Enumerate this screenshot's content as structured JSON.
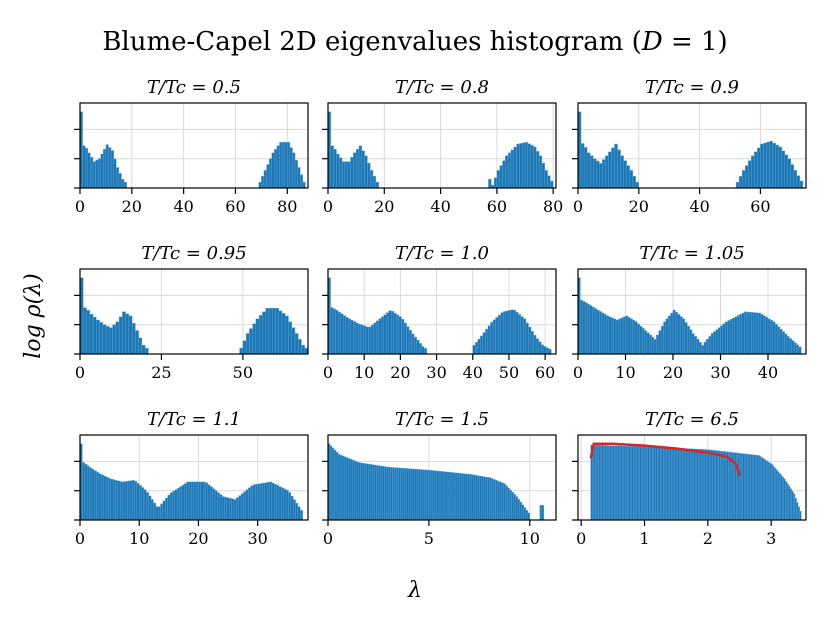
{
  "figure": {
    "title": "Blume-Capel 2D eigenvalues histogram (D = 1)",
    "xlabel": "λ",
    "ylabel": "log ρ(λ)"
  },
  "colors": {
    "bar": "#1f77b4",
    "bar_edge": "#5aa9dd",
    "fit": "#d62728",
    "grid": "#d9d9d9"
  },
  "chart_data": [
    {
      "type": "bar",
      "title": "T/Tc = 0.5",
      "xlim": [
        0,
        88
      ],
      "xticks": [
        0,
        20,
        40,
        60,
        80
      ],
      "ylim": [
        0,
        1.45
      ],
      "bins": [
        {
          "range": [
            0,
            17
          ],
          "step": 1,
          "shape": [
            [
              0,
              1.3
            ],
            [
              0.5,
              0.72
            ],
            [
              1.5,
              0.72
            ],
            [
              3,
              0.6
            ],
            [
              5,
              0.45
            ],
            [
              7,
              0.5
            ],
            [
              10,
              0.74
            ],
            [
              12,
              0.64
            ],
            [
              14,
              0.35
            ],
            [
              16,
              0.15
            ],
            [
              17,
              0.1
            ]
          ]
        },
        {
          "range": [
            69,
            86
          ],
          "step": 1,
          "shape": [
            [
              69,
              0.1
            ],
            [
              71,
              0.3
            ],
            [
              74,
              0.6
            ],
            [
              77,
              0.78
            ],
            [
              80,
              0.78
            ],
            [
              82,
              0.6
            ],
            [
              84,
              0.35
            ],
            [
              86,
              0.1
            ]
          ]
        }
      ]
    },
    {
      "type": "bar",
      "title": "T/Tc = 0.8",
      "xlim": [
        0,
        81
      ],
      "xticks": [
        0,
        20,
        40,
        60,
        80
      ],
      "ylim": [
        0,
        1.45
      ],
      "bins": [
        {
          "range": [
            0,
            17
          ],
          "step": 1,
          "shape": [
            [
              0,
              1.3
            ],
            [
              0.5,
              0.74
            ],
            [
              1.5,
              0.7
            ],
            [
              3,
              0.58
            ],
            [
              5,
              0.45
            ],
            [
              7,
              0.45
            ],
            [
              9,
              0.6
            ],
            [
              11,
              0.72
            ],
            [
              13,
              0.55
            ],
            [
              15,
              0.3
            ],
            [
              17,
              0.1
            ]
          ]
        },
        {
          "range": [
            57,
            79
          ],
          "step": 1,
          "shape": [
            [
              57,
              0.15
            ],
            [
              58,
              0.05
            ],
            [
              60,
              0.3
            ],
            [
              63,
              0.55
            ],
            [
              67,
              0.75
            ],
            [
              70,
              0.78
            ],
            [
              73,
              0.7
            ],
            [
              75,
              0.55
            ],
            [
              77,
              0.3
            ],
            [
              79,
              0.12
            ]
          ]
        }
      ]
    },
    {
      "type": "bar",
      "title": "T/Tc = 0.9",
      "xlim": [
        0,
        75
      ],
      "xticks": [
        0,
        20,
        40,
        60
      ],
      "ylim": [
        0,
        1.45
      ],
      "bins": [
        {
          "range": [
            0,
            19
          ],
          "step": 1,
          "shape": [
            [
              0,
              1.3
            ],
            [
              0.5,
              0.78
            ],
            [
              1.5,
              0.74
            ],
            [
              3,
              0.6
            ],
            [
              5,
              0.5
            ],
            [
              7,
              0.42
            ],
            [
              9,
              0.55
            ],
            [
              12,
              0.75
            ],
            [
              14,
              0.55
            ],
            [
              17,
              0.3
            ],
            [
              19,
              0.1
            ]
          ]
        },
        {
          "range": [
            52,
            73
          ],
          "step": 1,
          "shape": [
            [
              52,
              0.1
            ],
            [
              54,
              0.3
            ],
            [
              57,
              0.55
            ],
            [
              60,
              0.75
            ],
            [
              63,
              0.8
            ],
            [
              66,
              0.7
            ],
            [
              69,
              0.5
            ],
            [
              71,
              0.3
            ],
            [
              73,
              0.12
            ]
          ]
        }
      ]
    },
    {
      "type": "bar",
      "title": "T/Tc = 0.95",
      "xlim": [
        0,
        70
      ],
      "xticks": [
        0,
        25,
        50
      ],
      "ylim": [
        0,
        1.45
      ],
      "bins": [
        {
          "range": [
            0,
            20
          ],
          "step": 1,
          "shape": [
            [
              0,
              1.3
            ],
            [
              0.5,
              0.8
            ],
            [
              1.5,
              0.78
            ],
            [
              3,
              0.68
            ],
            [
              5,
              0.58
            ],
            [
              7,
              0.5
            ],
            [
              9,
              0.45
            ],
            [
              11,
              0.55
            ],
            [
              13,
              0.72
            ],
            [
              15,
              0.65
            ],
            [
              17,
              0.4
            ],
            [
              19,
              0.15
            ],
            [
              20,
              0.1
            ]
          ]
        },
        {
          "range": [
            49,
            69
          ],
          "step": 1,
          "shape": [
            [
              49,
              0.1
            ],
            [
              51,
              0.35
            ],
            [
              54,
              0.6
            ],
            [
              57,
              0.78
            ],
            [
              60,
              0.78
            ],
            [
              63,
              0.65
            ],
            [
              66,
              0.35
            ],
            [
              68,
              0.15
            ],
            [
              69,
              0.1
            ]
          ]
        }
      ]
    },
    {
      "type": "bar",
      "title": "T/Tc = 1.0",
      "xlim": [
        0,
        63
      ],
      "xticks": [
        0,
        10,
        20,
        30,
        40,
        50,
        60
      ],
      "ylim": [
        0,
        1.45
      ],
      "bins": [
        {
          "range": [
            0,
            27
          ],
          "step": 0.7,
          "shape": [
            [
              0,
              1.3
            ],
            [
              0.5,
              0.8
            ],
            [
              2,
              0.75
            ],
            [
              5,
              0.62
            ],
            [
              8,
              0.52
            ],
            [
              11,
              0.45
            ],
            [
              14,
              0.6
            ],
            [
              17,
              0.75
            ],
            [
              20,
              0.62
            ],
            [
              23,
              0.35
            ],
            [
              26,
              0.12
            ],
            [
              27,
              0.08
            ]
          ]
        },
        {
          "range": [
            40,
            61
          ],
          "step": 0.7,
          "shape": [
            [
              40,
              0.15
            ],
            [
              42,
              0.3
            ],
            [
              45,
              0.55
            ],
            [
              48,
              0.72
            ],
            [
              51,
              0.76
            ],
            [
              54,
              0.6
            ],
            [
              57,
              0.3
            ],
            [
              59,
              0.15
            ],
            [
              61,
              0.08
            ]
          ]
        }
      ]
    },
    {
      "type": "bar",
      "title": "T/Tc = 1.05",
      "xlim": [
        0,
        48
      ],
      "xticks": [
        0,
        10,
        20,
        30,
        40
      ],
      "ylim": [
        0,
        1.45
      ],
      "bins": [
        {
          "range": [
            0,
            46.5
          ],
          "step": 0.5,
          "shape": [
            [
              0,
              1.3
            ],
            [
              0.5,
              0.92
            ],
            [
              2,
              0.85
            ],
            [
              4,
              0.75
            ],
            [
              6,
              0.65
            ],
            [
              8,
              0.58
            ],
            [
              10,
              0.65
            ],
            [
              12,
              0.55
            ],
            [
              14,
              0.4
            ],
            [
              16,
              0.25
            ],
            [
              18,
              0.55
            ],
            [
              20,
              0.75
            ],
            [
              22,
              0.6
            ],
            [
              24,
              0.35
            ],
            [
              26,
              0.15
            ],
            [
              28,
              0.35
            ],
            [
              31,
              0.55
            ],
            [
              35,
              0.72
            ],
            [
              38,
              0.7
            ],
            [
              41,
              0.55
            ],
            [
              44,
              0.3
            ],
            [
              46.5,
              0.12
            ]
          ]
        }
      ]
    },
    {
      "type": "bar",
      "title": "T/Tc = 1.1",
      "xlim": [
        0,
        38.5
      ],
      "xticks": [
        0,
        10,
        20,
        30
      ],
      "ylim": [
        0,
        1.45
      ],
      "bins": [
        {
          "range": [
            0,
            37.5
          ],
          "step": 0.4,
          "shape": [
            [
              0,
              1.3
            ],
            [
              0.4,
              0.98
            ],
            [
              1.5,
              0.9
            ],
            [
              3,
              0.8
            ],
            [
              5,
              0.7
            ],
            [
              7,
              0.65
            ],
            [
              9,
              0.68
            ],
            [
              11,
              0.5
            ],
            [
              13,
              0.2
            ],
            [
              15,
              0.45
            ],
            [
              18,
              0.65
            ],
            [
              21,
              0.65
            ],
            [
              24,
              0.4
            ],
            [
              26,
              0.35
            ],
            [
              29,
              0.6
            ],
            [
              32,
              0.65
            ],
            [
              35,
              0.5
            ],
            [
              37.5,
              0.12
            ]
          ]
        }
      ]
    },
    {
      "type": "bar",
      "title": "T/Tc = 1.5",
      "xlim": [
        0,
        11.3
      ],
      "xticks": [
        0,
        5,
        10
      ],
      "ylim": [
        0,
        1.45
      ],
      "bins": [
        {
          "range": [
            0,
            9.9
          ],
          "step": 0.1,
          "shape": [
            [
              0,
              1.3
            ],
            [
              0.5,
              1.12
            ],
            [
              1.5,
              0.98
            ],
            [
              3,
              0.9
            ],
            [
              5,
              0.85
            ],
            [
              7,
              0.78
            ],
            [
              8,
              0.72
            ],
            [
              8.7,
              0.62
            ],
            [
              9.3,
              0.4
            ],
            [
              9.9,
              0.12
            ]
          ]
        },
        {
          "range": [
            10.5,
            10.6
          ],
          "step": 0.1,
          "shape": [
            [
              10.5,
              0.25
            ],
            [
              10.6,
              0.25
            ]
          ]
        }
      ]
    },
    {
      "type": "bar",
      "title": "T/Tc = 6.5",
      "xlim": [
        -0.05,
        3.55
      ],
      "xticks": [
        0,
        1,
        2,
        3
      ],
      "ylim": [
        0,
        1.45
      ],
      "bins": [
        {
          "range": [
            0.15,
            3.45
          ],
          "step": 0.025,
          "shape": [
            [
              0.15,
              1.28
            ],
            [
              1.0,
              1.25
            ],
            [
              2.0,
              1.2
            ],
            [
              2.8,
              1.1
            ],
            [
              3.0,
              0.95
            ],
            [
              3.2,
              0.7
            ],
            [
              3.35,
              0.45
            ],
            [
              3.45,
              0.15
            ]
          ]
        }
      ],
      "fit_curve": [
        [
          0.15,
          1.05
        ],
        [
          0.2,
          1.3
        ],
        [
          0.5,
          1.3
        ],
        [
          1.0,
          1.27
        ],
        [
          1.5,
          1.22
        ],
        [
          2.0,
          1.15
        ],
        [
          2.3,
          1.08
        ],
        [
          2.45,
          0.95
        ],
        [
          2.5,
          0.75
        ]
      ]
    }
  ]
}
